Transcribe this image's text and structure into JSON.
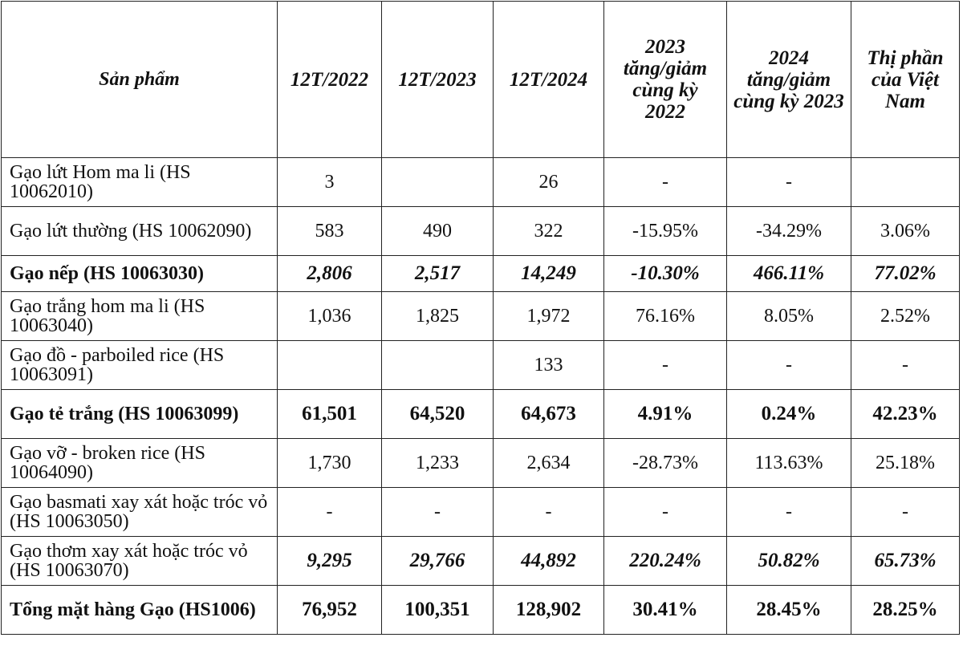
{
  "table": {
    "headers": [
      "Sản phẩm",
      "12T/2022",
      "12T/2023",
      "12T/2024",
      "2023 tăng/giảm cùng kỳ 2022",
      "2024 tăng/giảm cùng kỳ 2023",
      "Thị phần của Việt Nam"
    ],
    "rows": [
      {
        "name": "Gạo lứt Hom ma li (HS 10062010)",
        "y2022": "3",
        "y2023": "",
        "y2024": "26",
        "chg2023": "-",
        "chg2024": "-",
        "share": ""
      },
      {
        "name": "Gạo lứt thường (HS 10062090)",
        "y2022": "583",
        "y2023": "490",
        "y2024": "322",
        "chg2023": "-15.95%",
        "chg2024": "-34.29%",
        "share": "3.06%"
      },
      {
        "name": "Gạo nếp (HS 10063030)",
        "y2022": "2,806",
        "y2023": "2,517",
        "y2024": "14,249",
        "chg2023": "-10.30%",
        "chg2024": "466.11%",
        "share": "77.02%"
      },
      {
        "name": "Gạo trắng hom ma li (HS 10063040)",
        "y2022": "1,036",
        "y2023": "1,825",
        "y2024": "1,972",
        "chg2023": "76.16%",
        "chg2024": "8.05%",
        "share": "2.52%"
      },
      {
        "name": "Gạo đồ - parboiled rice (HS 10063091)",
        "y2022": "",
        "y2023": "",
        "y2024": "133",
        "chg2023": "-",
        "chg2024": "-",
        "share": "-"
      },
      {
        "name": "Gạo tẻ trắng (HS 10063099)",
        "y2022": "61,501",
        "y2023": "64,520",
        "y2024": "64,673",
        "chg2023": "4.91%",
        "chg2024": "0.24%",
        "share": "42.23%"
      },
      {
        "name": "Gạo vỡ - broken rice (HS 10064090)",
        "y2022": "1,730",
        "y2023": "1,233",
        "y2024": "2,634",
        "chg2023": "-28.73%",
        "chg2024": "113.63%",
        "share": "25.18%"
      },
      {
        "name": "Gạo basmati xay xát hoặc tróc vỏ (HS 10063050)",
        "y2022": "-",
        "y2023": "-",
        "y2024": "-",
        "chg2023": "-",
        "chg2024": "-",
        "share": "-"
      },
      {
        "name": "Gạo thơm xay xát hoặc tróc vỏ (HS 10063070)",
        "y2022": "9,295",
        "y2023": "29,766",
        "y2024": "44,892",
        "chg2023": "220.24%",
        "chg2024": "50.82%",
        "share": "65.73%"
      },
      {
        "name": "Tổng mặt hàng Gạo (HS1006)",
        "y2022": "76,952",
        "y2023": "100,351",
        "y2024": "128,902",
        "chg2023": "30.41%",
        "chg2024": "28.45%",
        "share": "28.25%"
      }
    ]
  }
}
